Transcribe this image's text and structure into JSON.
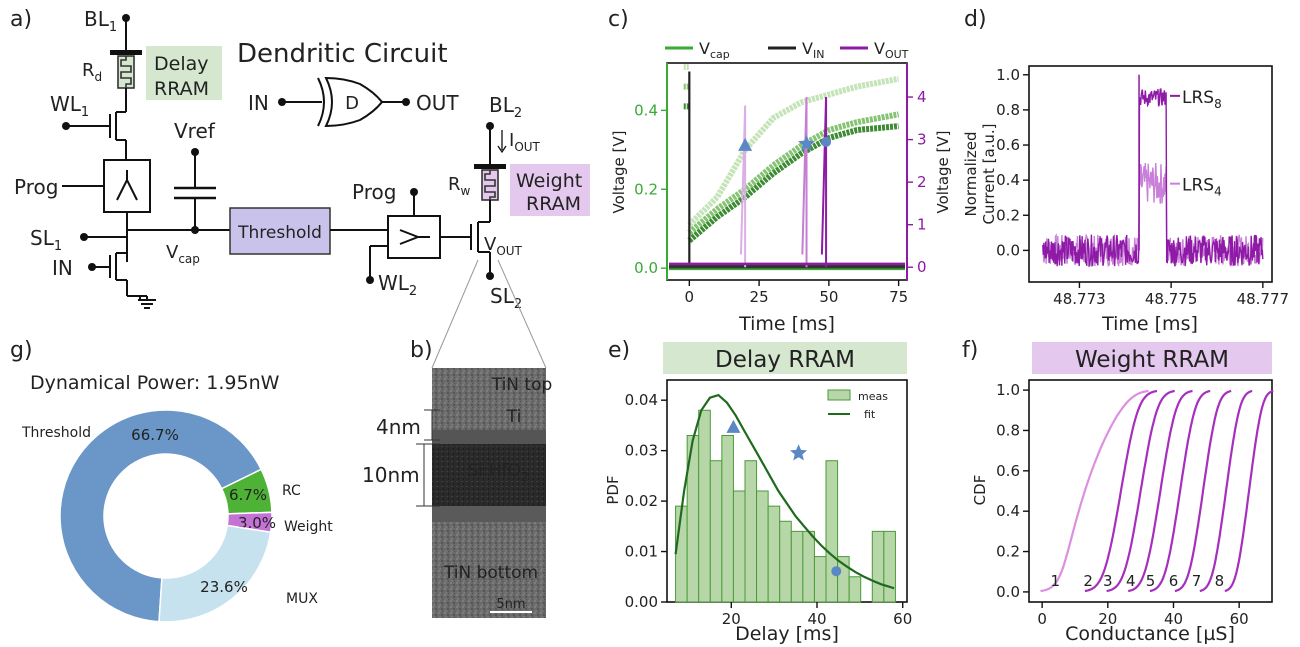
{
  "panels": {
    "a": "a)",
    "b": "b)",
    "c": "c)",
    "d": "d)",
    "e": "e)",
    "f": "f)",
    "g": "g)"
  },
  "circuit": {
    "title": "Dendritic Circuit",
    "bl1": "BL",
    "bl1_sub": "1",
    "rd": "R",
    "rd_sub": "d",
    "delay_rram_1": "Delay",
    "delay_rram_2": "RRAM",
    "wl1": "WL",
    "wl1_sub": "1",
    "vref": "Vref",
    "prog1": "Prog",
    "sl1": "SL",
    "sl1_sub": "1",
    "vcap": "V",
    "vcap_sub": "cap",
    "in_left": "IN",
    "threshold": "Threshold",
    "prog2": "Prog",
    "wl2": "WL",
    "wl2_sub": "2",
    "gate_in": "IN",
    "gate_label": "D",
    "gate_out": "OUT",
    "bl2": "BL",
    "bl2_sub": "2",
    "iout": "I",
    "iout_sub": "OUT",
    "rw": "R",
    "rw_sub": "w",
    "weight_rram_1": "Weight",
    "weight_rram_2": "RRAM",
    "vout": "V",
    "vout_sub": "OUT",
    "sl2": "SL",
    "sl2_sub": "2"
  },
  "tem": {
    "tin_top": "TiN top",
    "ti": "Ti",
    "hfo": "Si:HfO",
    "hfo_sub": "2",
    "tin_bottom": "TiN bottom",
    "scale": "5nm",
    "d4": "4nm",
    "d10": "10nm"
  },
  "colors": {
    "green": "#3aaa35",
    "dark_green": "#1e6b1e",
    "purple": "#8e1aa6",
    "light_purple": "#e4c8ee",
    "light_green": "#d6e7cf",
    "blue": "#5b87c4",
    "lavender": "#c9c3ec"
  },
  "chart_data": [
    {
      "id": "c",
      "type": "line",
      "title": "",
      "xlabel": "Time [ms]",
      "ylabel_left": "Voltage [V]",
      "ylabel_right": "Voltage [V]",
      "xlim": [
        -8,
        78
      ],
      "ylim_left": [
        -0.03,
        0.52
      ],
      "ylim_right": [
        -0.3,
        4.8
      ],
      "xticks": [
        "0",
        "25",
        "50",
        "75"
      ],
      "yticks_left": [
        "0.0",
        "0.2",
        "0.4"
      ],
      "yticks_right": [
        "0",
        "1",
        "2",
        "3",
        "4"
      ],
      "legend": [
        {
          "name": "V",
          "sub": "cap",
          "color": "#3aaa35"
        },
        {
          "name": "V",
          "sub": "IN",
          "color": "#222222"
        },
        {
          "name": "V",
          "sub": "OUT",
          "color": "#8e1aa6"
        }
      ],
      "vcap_curves": [
        {
          "color": "#c4e4b8",
          "t_reset": 0,
          "v0": 0.51,
          "points": [
            [
              0,
              0.11
            ],
            [
              10,
              0.18
            ],
            [
              20,
              0.3
            ],
            [
              30,
              0.38
            ],
            [
              40,
              0.42
            ],
            [
              50,
              0.44
            ],
            [
              60,
              0.46
            ],
            [
              75,
              0.48
            ]
          ]
        },
        {
          "color": "#86c474",
          "t_reset": 0,
          "v0": 0.46,
          "points": [
            [
              0,
              0.09
            ],
            [
              10,
              0.15
            ],
            [
              20,
              0.2
            ],
            [
              30,
              0.26
            ],
            [
              40,
              0.31
            ],
            [
              50,
              0.35
            ],
            [
              60,
              0.37
            ],
            [
              75,
              0.39
            ]
          ]
        },
        {
          "color": "#3d8c34",
          "t_reset": 0,
          "v0": 0.41,
          "points": [
            [
              0,
              0.07
            ],
            [
              10,
              0.13
            ],
            [
              20,
              0.18
            ],
            [
              30,
              0.24
            ],
            [
              40,
              0.29
            ],
            [
              50,
              0.33
            ],
            [
              60,
              0.35
            ],
            [
              75,
              0.36
            ]
          ]
        }
      ],
      "vout_spikes": [
        {
          "t": 20,
          "color": "#dcaee6",
          "peak": 3.8
        },
        {
          "t": 42,
          "color": "#c47fd3",
          "peak": 4.0
        },
        {
          "t": 49,
          "color": "#8e1aa6",
          "peak": 4.0
        }
      ],
      "markers": [
        {
          "shape": "triangle",
          "x": 20,
          "y": 0.31,
          "color": "#5b87c4"
        },
        {
          "shape": "star",
          "x": 42,
          "y": 0.315,
          "color": "#5b87c4"
        },
        {
          "shape": "circle",
          "x": 49,
          "y": 0.32,
          "color": "#5b87c4"
        }
      ]
    },
    {
      "id": "d",
      "type": "line",
      "title": "",
      "xlabel": "Time [ms]",
      "ylabel": "Normalized Current [a.u.]",
      "xlim": [
        48.7719,
        48.7772
      ],
      "ylim": [
        -0.18,
        1.05
      ],
      "xticks": [
        "48.773",
        "48.775",
        "48.777"
      ],
      "yticks": [
        "0.0",
        "0.2",
        "0.4",
        "0.6",
        "0.8",
        "1.0"
      ],
      "series": [
        {
          "name": "LRS",
          "sub": "8",
          "color": "#8e1aa6",
          "level": 0.87,
          "t_on": 48.7743,
          "t_off": 48.7749
        },
        {
          "name": "LRS",
          "sub": "4",
          "color": "#c980d9",
          "level": 0.38,
          "t_on": 48.7743,
          "t_off": 48.7749
        }
      ]
    },
    {
      "id": "e",
      "type": "bar",
      "title": "Delay RRAM",
      "xlabel": "Delay [ms]",
      "ylabel": "PDF",
      "xlim": [
        5,
        61
      ],
      "ylim": [
        0,
        0.044
      ],
      "xticks": [
        "20",
        "40",
        "60"
      ],
      "yticks": [
        "0.00",
        "0.01",
        "0.02",
        "0.03",
        "0.04"
      ],
      "legend": [
        "meas",
        "fit"
      ],
      "bin_start": 7,
      "bin_width": 2.7,
      "values": [
        0.019,
        0.033,
        0.038,
        0.028,
        0.033,
        0.022,
        0.028,
        0.022,
        0.019,
        0.016,
        0.014,
        0.014,
        0.009,
        0.028,
        0.009,
        0.005,
        0.0,
        0.014,
        0.014
      ],
      "fit_x": [
        7,
        9,
        11,
        13,
        15,
        17,
        19,
        21,
        23,
        25,
        27,
        29,
        31,
        33,
        35,
        37,
        39,
        41,
        43,
        45,
        47,
        49,
        51,
        53,
        55,
        57,
        58
      ],
      "fit_y": [
        0.0095,
        0.022,
        0.032,
        0.038,
        0.0405,
        0.041,
        0.0395,
        0.037,
        0.034,
        0.031,
        0.028,
        0.025,
        0.022,
        0.0195,
        0.017,
        0.015,
        0.013,
        0.0112,
        0.0096,
        0.0082,
        0.007,
        0.0059,
        0.005,
        0.0042,
        0.0035,
        0.003,
        0.0027
      ],
      "markers": [
        {
          "shape": "triangle",
          "x": 20.5,
          "y": 0.0345,
          "color": "#5b87c4"
        },
        {
          "shape": "star",
          "x": 35.7,
          "y": 0.0295,
          "color": "#5b87c4"
        },
        {
          "shape": "circle",
          "x": 44.5,
          "y": 0.0061,
          "color": "#5b87c4"
        }
      ]
    },
    {
      "id": "f",
      "type": "line",
      "title": "Weight RRAM",
      "xlabel": "Conductance [µS]",
      "ylabel": "CDF",
      "xlim": [
        -4,
        70
      ],
      "ylim": [
        -0.05,
        1.05
      ],
      "xticks": [
        "0",
        "20",
        "40",
        "60"
      ],
      "yticks": [
        "0.0",
        "0.2",
        "0.4",
        "0.6",
        "0.8",
        "1.0"
      ],
      "series": [
        {
          "name": "1",
          "center": 10,
          "width": 3.5,
          "color": "#dd8fe0"
        },
        {
          "name": "2",
          "center": 22,
          "width": 3.0,
          "color": "#a62fbd"
        },
        {
          "name": "3",
          "center": 28,
          "width": 2.8,
          "color": "#a62fbd"
        },
        {
          "name": "4",
          "center": 34,
          "width": 2.6,
          "color": "#a62fbd"
        },
        {
          "name": "5",
          "center": 40,
          "width": 2.4,
          "color": "#a62fbd"
        },
        {
          "name": "6",
          "center": 47,
          "width": 2.2,
          "color": "#a62fbd"
        },
        {
          "name": "7",
          "center": 54,
          "width": 2.0,
          "color": "#a62fbd"
        },
        {
          "name": "8",
          "center": 61,
          "width": 1.8,
          "color": "#a62fbd"
        }
      ],
      "labels_y": 0.02,
      "label_x": [
        4,
        14,
        20,
        27,
        33,
        40,
        47,
        54
      ]
    },
    {
      "id": "g",
      "type": "pie",
      "title": "Dynamical Power: 1.95nW",
      "slices": [
        {
          "name": "Threshold",
          "value": 66.7,
          "label": "66.7%",
          "color": "#6a96c8"
        },
        {
          "name": "RC",
          "value": 6.7,
          "label": "6.7%",
          "color": "#4db235"
        },
        {
          "name": "Weight",
          "value": 3.0,
          "label": "3.0%",
          "color": "#c472d6"
        },
        {
          "name": "MUX",
          "value": 23.6,
          "label": "23.6%",
          "color": "#c6e2ef"
        }
      ]
    }
  ]
}
